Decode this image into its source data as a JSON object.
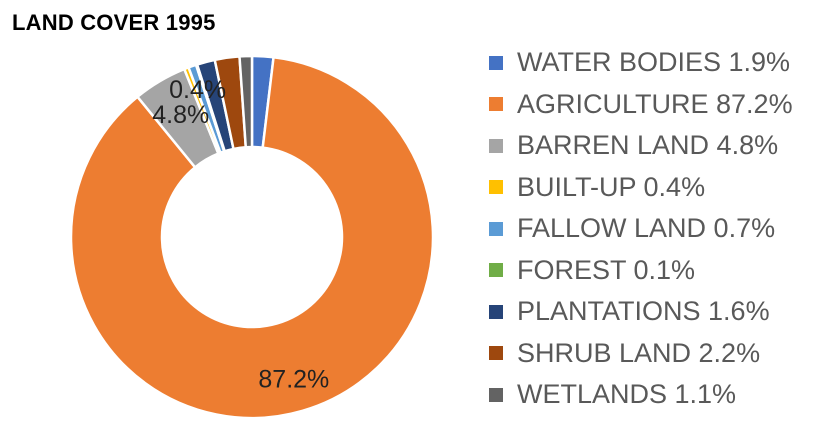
{
  "chart_data": {
    "type": "pie",
    "title": "LAND COVER 1995",
    "legend_position": "right",
    "categories": [
      "WATER BODIES",
      "AGRICULTURE",
      "BARREN LAND",
      "BUILT-UP",
      "FALLOW LAND",
      "FOREST",
      "PLANTATIONS",
      "SHRUB LAND",
      "WETLANDS"
    ],
    "values": [
      1.9,
      87.2,
      4.8,
      0.4,
      0.7,
      0.1,
      1.6,
      2.2,
      1.1
    ],
    "colors": [
      "#4472C4",
      "#ED7D31",
      "#A5A5A5",
      "#FFC000",
      "#5B9BD5",
      "#70AD47",
      "#264478",
      "#9E480E",
      "#636363"
    ],
    "legend_labels": [
      "WATER BODIES 1.9%",
      "AGRICULTURE 87.2%",
      "BARREN LAND 4.8%",
      "BUILT-UP 0.4%",
      "FALLOW LAND 0.7%",
      "FOREST 0.1%",
      "PLANTATIONS 1.6%",
      "SHRUB LAND 2.2%",
      "WETLANDS 1.1%"
    ],
    "data_labels": [
      {
        "category": "AGRICULTURE",
        "text": "87.2%"
      },
      {
        "category": "BARREN LAND",
        "text": "4.8%"
      },
      {
        "category": "BUILT-UP",
        "text": "0.4%"
      }
    ]
  }
}
